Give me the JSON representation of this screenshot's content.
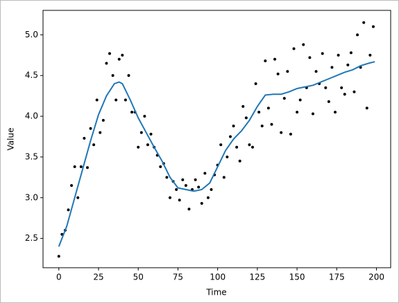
{
  "chart_data": {
    "type": "scatter",
    "x_label": "Time",
    "y_label": "Value",
    "xlim": [
      -9.95,
      208.95
    ],
    "ylim": [
      2.14,
      5.3
    ],
    "xticks": [
      0,
      25,
      50,
      75,
      100,
      125,
      150,
      175,
      200
    ],
    "yticks": [
      2.5,
      {
        "value": 3,
        "label": "3.0"
      },
      3.5,
      {
        "value": 4,
        "label": "4.0"
      },
      4.5,
      {
        "value": 5,
        "label": "5.0"
      }
    ],
    "series": [
      {
        "type": "scatter",
        "color": "#000000",
        "x": [
          0,
          2,
          4,
          6,
          8,
          10,
          12,
          14,
          16,
          18,
          20,
          22,
          24,
          26,
          28,
          30,
          32,
          34,
          36,
          38,
          40,
          42,
          44,
          46,
          48,
          50,
          52,
          54,
          56,
          58,
          60,
          62,
          64,
          66,
          68,
          70,
          72,
          74,
          76,
          78,
          80,
          82,
          84,
          86,
          88,
          90,
          92,
          94,
          96,
          98,
          100,
          102,
          104,
          106,
          108,
          110,
          112,
          114,
          116,
          118,
          120,
          122,
          124,
          126,
          128,
          130,
          132,
          134,
          136,
          138,
          140,
          142,
          144,
          146,
          148,
          150,
          152,
          154,
          156,
          158,
          160,
          162,
          164,
          166,
          168,
          170,
          172,
          174,
          176,
          178,
          180,
          182,
          184,
          186,
          188,
          190,
          192,
          194,
          196,
          198
        ],
        "values": [
          2.28,
          2.55,
          2.6,
          2.85,
          3.15,
          3.38,
          3.0,
          3.38,
          3.73,
          3.37,
          3.85,
          3.65,
          4.2,
          3.8,
          3.95,
          4.65,
          4.77,
          4.5,
          4.2,
          4.7,
          4.75,
          4.2,
          4.5,
          4.05,
          4.05,
          3.62,
          3.8,
          4.0,
          3.65,
          3.78,
          3.62,
          3.52,
          3.38,
          3.42,
          3.25,
          3.0,
          3.2,
          3.1,
          2.97,
          3.22,
          3.15,
          2.86,
          3.1,
          3.22,
          3.13,
          2.93,
          3.3,
          3.0,
          3.1,
          3.28,
          3.4,
          3.65,
          3.25,
          3.5,
          3.75,
          3.88,
          3.62,
          3.45,
          4.12,
          3.98,
          3.65,
          3.62,
          4.4,
          4.05,
          3.88,
          4.68,
          4.1,
          3.9,
          4.7,
          4.52,
          3.8,
          4.22,
          4.55,
          3.78,
          4.83,
          4.05,
          4.2,
          4.88,
          4.35,
          4.72,
          4.03,
          4.55,
          4.4,
          4.77,
          4.35,
          4.18,
          4.6,
          4.05,
          4.75,
          4.35,
          4.27,
          4.63,
          4.78,
          4.3,
          5.0,
          4.6,
          5.15,
          4.1,
          4.75,
          5.1
        ]
      },
      {
        "type": "line",
        "color": "#1f77b4",
        "x": [
          0,
          5,
          10,
          15,
          20,
          25,
          30,
          35,
          38,
          40,
          45,
          50,
          55,
          60,
          65,
          70,
          75,
          80,
          85,
          90,
          95,
          100,
          105,
          110,
          115,
          120,
          125,
          130,
          135,
          140,
          145,
          150,
          155,
          160,
          165,
          170,
          175,
          180,
          185,
          190,
          195,
          199
        ],
        "values": [
          2.4,
          2.65,
          3.0,
          3.35,
          3.7,
          4.02,
          4.25,
          4.4,
          4.42,
          4.4,
          4.2,
          3.98,
          3.8,
          3.62,
          3.45,
          3.25,
          3.12,
          3.1,
          3.08,
          3.1,
          3.18,
          3.38,
          3.58,
          3.72,
          3.82,
          3.95,
          4.12,
          4.26,
          4.27,
          4.27,
          4.3,
          4.34,
          4.36,
          4.38,
          4.42,
          4.46,
          4.5,
          4.54,
          4.57,
          4.62,
          4.65,
          4.67
        ]
      }
    ]
  }
}
